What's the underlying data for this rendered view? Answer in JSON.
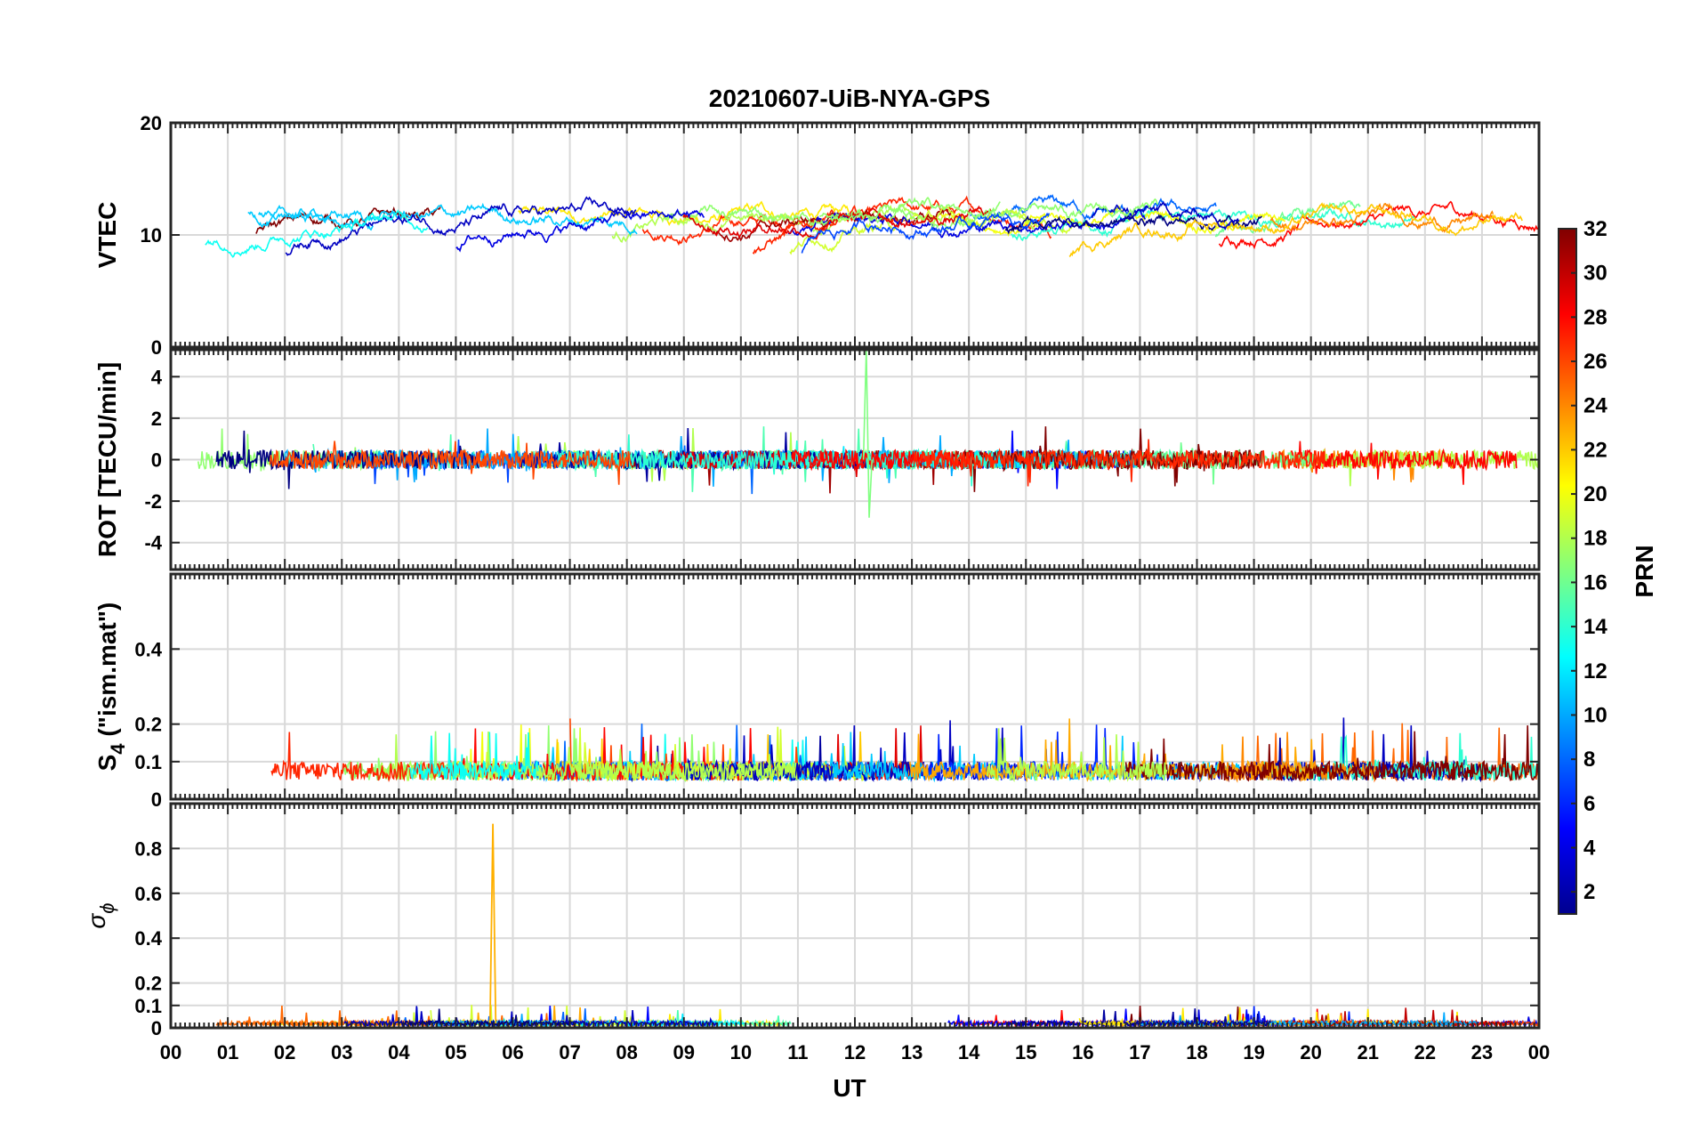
{
  "chart_data": {
    "type": "line",
    "title": "20210607-UiB-NYA-GPS",
    "xlabel": "UT",
    "x_ticks": [
      "00",
      "01",
      "02",
      "03",
      "04",
      "05",
      "06",
      "07",
      "08",
      "09",
      "10",
      "11",
      "12",
      "13",
      "14",
      "15",
      "16",
      "17",
      "18",
      "19",
      "20",
      "21",
      "22",
      "23",
      "00"
    ],
    "xlim": [
      0,
      24
    ],
    "grid": true,
    "colorbar": {
      "label": "PRN",
      "colormap": "jet",
      "range": [
        1,
        32
      ],
      "ticks": [
        "2",
        "4",
        "6",
        "8",
        "10",
        "12",
        "14",
        "16",
        "18",
        "20",
        "22",
        "24",
        "26",
        "28",
        "30",
        "32"
      ]
    },
    "panels": [
      {
        "id": "vtec",
        "ylabel": "VTEC",
        "ylim": [
          0,
          20
        ],
        "yticks": [
          0,
          10,
          20
        ],
        "ytick_labels": [
          "0",
          "10",
          "20"
        ],
        "series_range_note": "satellite traces mostly 7–15 TECU"
      },
      {
        "id": "rot",
        "ylabel": "ROT [TECU/min]",
        "ylim": [
          -5.3,
          5.3
        ],
        "yticks": [
          -4,
          -2,
          0,
          2,
          4
        ],
        "ytick_labels": [
          "-4",
          "-2",
          "0",
          "2",
          "4"
        ]
      },
      {
        "id": "s4",
        "ylabel_main": "S",
        "ylabel_sub": "4",
        "ylabel_rest": " (\"ism.mat\")",
        "ylim": [
          0,
          0.6
        ],
        "yticks": [
          0,
          0.1,
          0.2,
          0.4
        ],
        "ytick_labels": [
          "0",
          "0.1",
          "0.2",
          "0.4"
        ]
      },
      {
        "id": "sigphi",
        "ylabel_main": "σ",
        "ylabel_sub": "ϕ",
        "ylim": [
          0,
          1.0
        ],
        "yticks": [
          0,
          0.1,
          0.2,
          0.4,
          0.6,
          0.8
        ],
        "ytick_labels": [
          "0",
          "0.1",
          "0.2",
          "0.4",
          "0.6",
          "0.8"
        ]
      }
    ]
  }
}
